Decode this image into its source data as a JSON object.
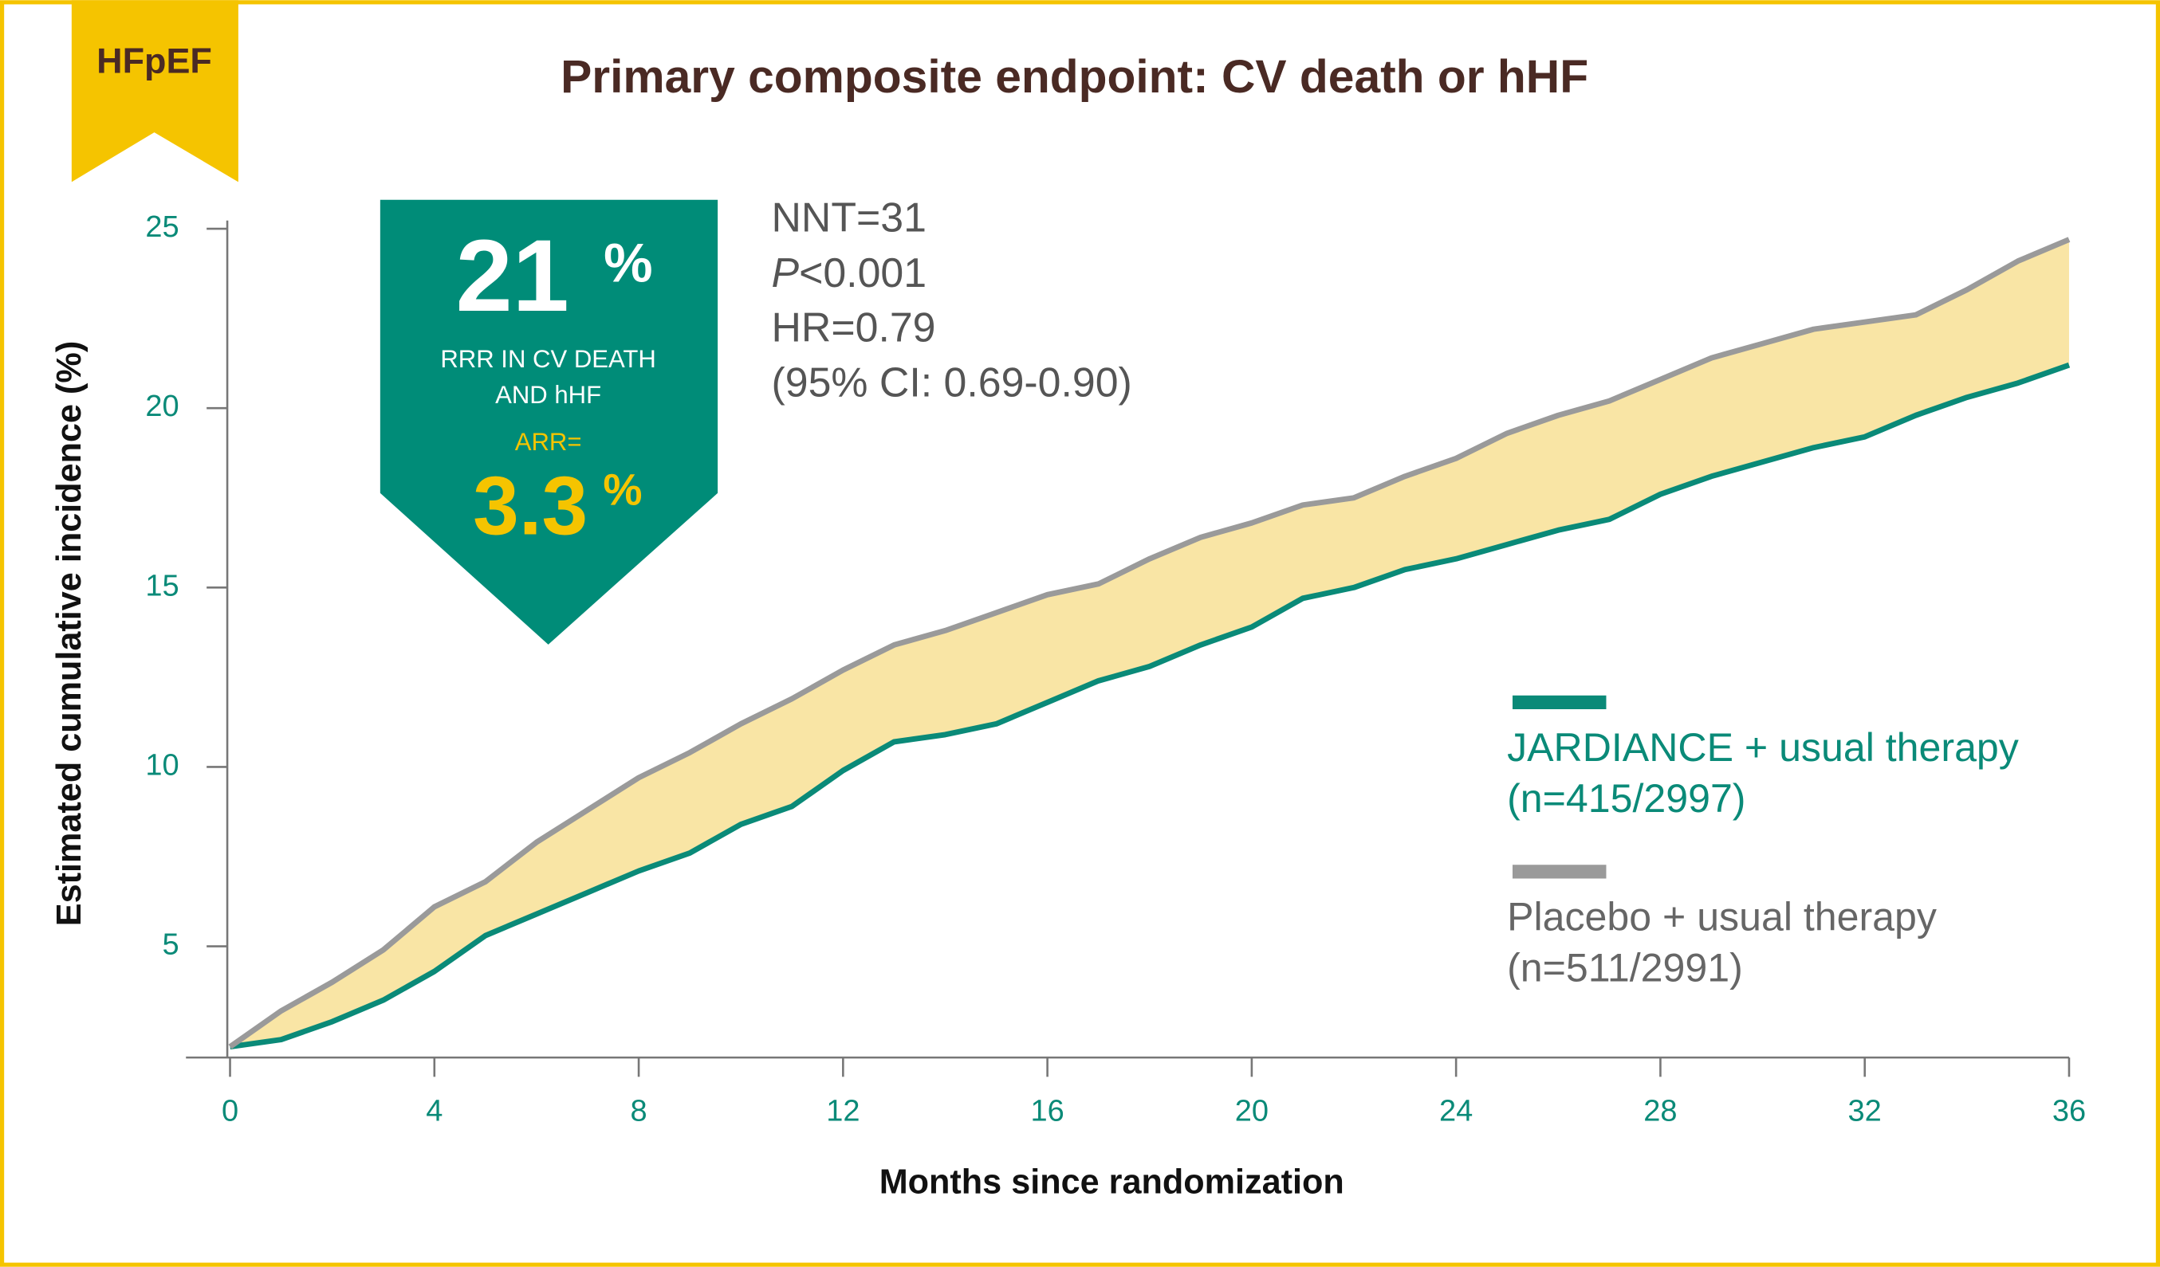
{
  "chart_data": {
    "type": "line",
    "tab": "HFpEF",
    "title": "Primary composite endpoint: CV death or hHF",
    "badge": {
      "rrr_value": "21",
      "rrr_unit": "%",
      "rrr_label_lines": [
        "RRR IN CV DEATH",
        "AND hHF"
      ],
      "arr_label": "ARR=",
      "arr_value": "3.3",
      "arr_unit": "%"
    },
    "stats": {
      "nnt": "NNT=31",
      "p_symbol": "P",
      "p_value": "<0.001",
      "hr": "HR=0.79",
      "ci": "(95% CI: 0.69-0.90)"
    },
    "x_label": "Months since randomization",
    "y_label": "Estimated cumulative incidence (%)",
    "x": [
      0,
      1,
      2,
      3,
      4,
      5,
      6,
      7,
      8,
      9,
      10,
      11,
      12,
      13,
      14,
      15,
      16,
      17,
      18,
      19,
      20,
      21,
      22,
      23,
      24,
      25,
      26,
      27,
      28,
      29,
      30,
      31,
      32,
      33,
      34,
      35,
      36
    ],
    "series": [
      {
        "name": "JARDIANCE + usual therapy",
        "n": "(n=415/2997)",
        "color": "#0a8a78",
        "values": [
          2.2,
          2.4,
          2.9,
          3.5,
          4.3,
          5.3,
          5.9,
          6.5,
          7.1,
          7.6,
          8.4,
          8.9,
          9.9,
          10.7,
          10.9,
          11.2,
          11.8,
          12.4,
          12.8,
          13.4,
          13.9,
          14.7,
          15.0,
          15.5,
          15.8,
          16.2,
          16.6,
          16.9,
          17.6,
          18.1,
          18.5,
          18.9,
          19.2,
          19.8,
          20.3,
          20.7,
          21.2
        ]
      },
      {
        "name": "Placebo + usual therapy",
        "n": "(n=511/2991)",
        "color": "#9a9a9a",
        "values": [
          2.2,
          3.2,
          4.0,
          4.9,
          6.1,
          6.8,
          7.9,
          8.8,
          9.7,
          10.4,
          11.2,
          11.9,
          12.7,
          13.4,
          13.8,
          14.3,
          14.8,
          15.1,
          15.8,
          16.4,
          16.8,
          17.3,
          17.5,
          18.1,
          18.6,
          19.3,
          19.8,
          20.2,
          20.8,
          21.4,
          21.8,
          22.2,
          22.4,
          22.6,
          23.3,
          24.1,
          24.7
        ]
      }
    ],
    "band_color": "#f7df8f",
    "xlim": [
      0,
      36
    ],
    "xticks": [
      0,
      4,
      8,
      12,
      16,
      20,
      24,
      28,
      32,
      36
    ],
    "ylim": [
      1.9,
      25
    ],
    "yticks": [
      5,
      10,
      15,
      20,
      25
    ]
  }
}
